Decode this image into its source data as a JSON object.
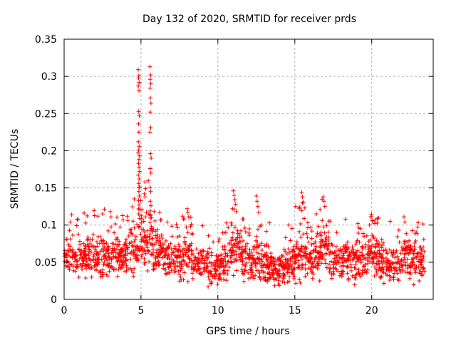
{
  "chart_data": {
    "type": "scatter",
    "title": "Day 132 of 2020, SRMTID for receiver prds",
    "xlabel": "GPS time / hours",
    "ylabel": "SRMTID / TECUs",
    "xlim": [
      0,
      24
    ],
    "ylim": [
      0,
      0.35
    ],
    "xtick_values": [
      0,
      5,
      10,
      15,
      20
    ],
    "xtick_labels": [
      "0",
      "5",
      "10",
      "15",
      "20"
    ],
    "ytick_values": [
      0,
      0.05,
      0.1,
      0.15,
      0.2,
      0.25,
      0.3,
      0.35
    ],
    "ytick_labels": [
      "0",
      "0.05",
      "0.1",
      "0.15",
      "0.2",
      "0.25",
      "0.3",
      "0.35"
    ],
    "grid": true,
    "grid_style": "dashed",
    "grid_color": "#b2b2b2",
    "axis_color": "#000000",
    "background_color": "#ffffff",
    "legend": false,
    "marker": "plus",
    "marker_color": "#ff0000",
    "marker_size": 7,
    "series": [
      {
        "name": "SRMTID",
        "seed": 1327,
        "sampling": {
          "columns": 480,
          "x_start": 0.04,
          "x_end": 23.42,
          "min_pts": 2,
          "max_pts": 6,
          "x_jitter": 0.055,
          "noise_scale": 1.35,
          "outlier_prob": 0.05,
          "y_min": 0.013
        },
        "baseline_profile": [
          [
            0.0,
            0.058,
            0.028
          ],
          [
            0.5,
            0.06,
            0.03
          ],
          [
            1.0,
            0.058,
            0.03
          ],
          [
            1.5,
            0.062,
            0.031
          ],
          [
            2.0,
            0.06,
            0.032
          ],
          [
            2.5,
            0.064,
            0.033
          ],
          [
            3.0,
            0.058,
            0.03
          ],
          [
            3.5,
            0.06,
            0.03
          ],
          [
            4.0,
            0.064,
            0.031
          ],
          [
            4.5,
            0.068,
            0.034
          ],
          [
            4.9,
            0.08,
            0.046
          ],
          [
            5.3,
            0.072,
            0.038
          ],
          [
            5.6,
            0.082,
            0.048
          ],
          [
            6.0,
            0.066,
            0.032
          ],
          [
            6.5,
            0.058,
            0.028
          ],
          [
            7.0,
            0.052,
            0.026
          ],
          [
            7.5,
            0.056,
            0.028
          ],
          [
            8.0,
            0.062,
            0.032
          ],
          [
            8.5,
            0.05,
            0.026
          ],
          [
            9.0,
            0.046,
            0.024
          ],
          [
            9.6,
            0.04,
            0.023
          ],
          [
            10.0,
            0.042,
            0.024
          ],
          [
            10.5,
            0.052,
            0.028
          ],
          [
            11.0,
            0.068,
            0.038
          ],
          [
            11.3,
            0.072,
            0.04
          ],
          [
            11.7,
            0.058,
            0.032
          ],
          [
            12.0,
            0.052,
            0.03
          ],
          [
            12.5,
            0.058,
            0.036
          ],
          [
            13.0,
            0.044,
            0.026
          ],
          [
            13.4,
            0.048,
            0.028
          ],
          [
            13.8,
            0.038,
            0.022
          ],
          [
            14.2,
            0.04,
            0.023
          ],
          [
            14.6,
            0.046,
            0.026
          ],
          [
            15.0,
            0.055,
            0.034
          ],
          [
            15.5,
            0.062,
            0.038
          ],
          [
            16.0,
            0.054,
            0.03
          ],
          [
            16.5,
            0.06,
            0.034
          ],
          [
            16.9,
            0.068,
            0.038
          ],
          [
            17.3,
            0.056,
            0.03
          ],
          [
            17.8,
            0.052,
            0.028
          ],
          [
            18.3,
            0.056,
            0.03
          ],
          [
            18.8,
            0.052,
            0.028
          ],
          [
            19.3,
            0.05,
            0.028
          ],
          [
            19.8,
            0.056,
            0.03
          ],
          [
            20.2,
            0.06,
            0.032
          ],
          [
            20.7,
            0.052,
            0.028
          ],
          [
            21.2,
            0.048,
            0.027
          ],
          [
            21.7,
            0.05,
            0.028
          ],
          [
            22.2,
            0.056,
            0.03
          ],
          [
            22.7,
            0.056,
            0.03
          ],
          [
            23.1,
            0.052,
            0.028
          ],
          [
            23.45,
            0.056,
            0.028
          ]
        ],
        "spike_points": [
          [
            4.82,
            0.309
          ],
          [
            4.86,
            0.301
          ],
          [
            4.84,
            0.298
          ],
          [
            4.88,
            0.292
          ],
          [
            4.83,
            0.287
          ],
          [
            4.87,
            0.281
          ],
          [
            4.85,
            0.253
          ],
          [
            4.89,
            0.247
          ],
          [
            4.84,
            0.236
          ],
          [
            4.86,
            0.225
          ],
          [
            4.83,
            0.212
          ],
          [
            4.88,
            0.206
          ],
          [
            4.85,
            0.201
          ],
          [
            4.82,
            0.197
          ],
          [
            4.9,
            0.193
          ],
          [
            4.86,
            0.188
          ],
          [
            4.84,
            0.183
          ],
          [
            4.87,
            0.178
          ],
          [
            4.9,
            0.172
          ],
          [
            4.83,
            0.167
          ],
          [
            4.88,
            0.162
          ],
          [
            4.85,
            0.156
          ],
          [
            4.91,
            0.151
          ],
          [
            4.86,
            0.145
          ],
          [
            4.89,
            0.139
          ],
          [
            4.84,
            0.133
          ],
          [
            4.87,
            0.127
          ],
          [
            4.92,
            0.121
          ],
          [
            4.85,
            0.115
          ],
          [
            4.9,
            0.109
          ],
          [
            5.58,
            0.313
          ],
          [
            5.62,
            0.302
          ],
          [
            5.6,
            0.296
          ],
          [
            5.64,
            0.29
          ],
          [
            5.59,
            0.284
          ],
          [
            5.61,
            0.271
          ],
          [
            5.65,
            0.264
          ],
          [
            5.6,
            0.252
          ],
          [
            5.63,
            0.231
          ],
          [
            5.58,
            0.225
          ],
          [
            5.62,
            0.196
          ],
          [
            5.66,
            0.19
          ],
          [
            5.6,
            0.176
          ],
          [
            5.64,
            0.17
          ],
          [
            5.59,
            0.151
          ],
          [
            5.63,
            0.145
          ],
          [
            5.61,
            0.132
          ],
          [
            5.65,
            0.126
          ],
          [
            5.6,
            0.119
          ],
          [
            5.62,
            0.113
          ],
          [
            5.25,
            0.158
          ],
          [
            5.3,
            0.149
          ],
          [
            5.22,
            0.142
          ],
          [
            5.35,
            0.117
          ],
          [
            5.28,
            0.111
          ],
          [
            5.18,
            0.105
          ]
        ],
        "notable_points": [
          [
            0.4,
            0.104
          ],
          [
            0.9,
            0.108
          ],
          [
            1.3,
            0.116
          ],
          [
            2.2,
            0.112
          ],
          [
            2.5,
            0.115
          ],
          [
            3.0,
            0.118
          ],
          [
            3.05,
            0.111
          ],
          [
            4.1,
            0.112
          ],
          [
            6.3,
            0.107
          ],
          [
            6.7,
            0.104
          ],
          [
            7.3,
            0.101
          ],
          [
            8.0,
            0.122
          ],
          [
            8.05,
            0.117
          ],
          [
            8.1,
            0.111
          ],
          [
            9.0,
            0.099
          ],
          [
            10.95,
            0.122
          ],
          [
            11.0,
            0.146
          ],
          [
            11.05,
            0.14
          ],
          [
            11.1,
            0.134
          ],
          [
            11.15,
            0.128
          ],
          [
            11.2,
            0.118
          ],
          [
            12.5,
            0.139
          ],
          [
            12.55,
            0.132
          ],
          [
            12.6,
            0.125
          ],
          [
            12.65,
            0.117
          ],
          [
            13.35,
            0.103
          ],
          [
            14.6,
            0.1
          ],
          [
            15.05,
            0.125
          ],
          [
            15.45,
            0.144
          ],
          [
            15.5,
            0.138
          ],
          [
            15.55,
            0.131
          ],
          [
            16.4,
            0.115
          ],
          [
            16.85,
            0.138
          ],
          [
            16.9,
            0.132
          ],
          [
            16.95,
            0.125
          ],
          [
            18.3,
            0.108
          ],
          [
            19.1,
            0.102
          ],
          [
            19.95,
            0.111
          ],
          [
            20.05,
            0.106
          ],
          [
            21.2,
            0.105
          ],
          [
            22.1,
            0.111
          ],
          [
            22.15,
            0.104
          ],
          [
            23.0,
            0.097
          ]
        ]
      }
    ]
  }
}
